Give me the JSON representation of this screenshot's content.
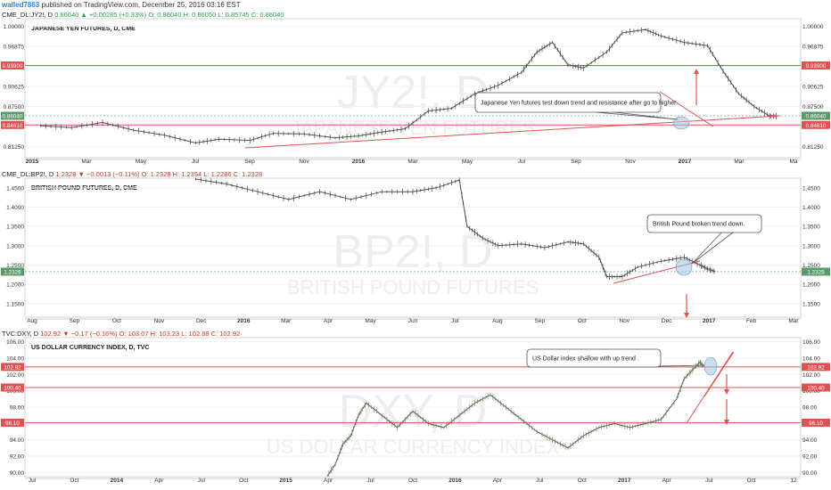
{
  "header": {
    "user": "walled7863",
    "published": "published on TradingView.com, December 25, 2016 03:16 EST"
  },
  "chart_data": [
    {
      "type": "line",
      "symbol_line": {
        "symbol": "CME_DL:JY2!, D",
        "last": "0.86040",
        "change": "+0.00285 (+0.33%)",
        "o": "O: 0.86040",
        "h": "H: 0.86050",
        "l": "L: 0.85745",
        "c": "C: 0.86040",
        "direction": "up"
      },
      "title": "JAPANESE YEN FUTURES, D, CME",
      "watermark_big": "JY2!, D",
      "watermark_small": "JAPANESE YEN FUTURES",
      "y_ticks": [
        "1.00000",
        "0.96875",
        "0.93750",
        "0.90625",
        "0.87500",
        "0.84375",
        "0.81250"
      ],
      "ylim": [
        0.795,
        1.012
      ],
      "x_ticks": [
        "2015",
        "Mar",
        "May",
        "Jul",
        "Sep",
        "Nov",
        "2016",
        "Mar",
        "May",
        "Jul",
        "Sep",
        "Nov",
        "2017",
        "Mar",
        "Ma"
      ],
      "level_labels": [
        {
          "text": "0.93900",
          "value": 0.939,
          "color": "#e05252"
        },
        {
          "text": "0.86040",
          "value": 0.8604,
          "color": "#5a9a6a"
        },
        {
          "text": "0.84610",
          "value": 0.8461,
          "color": "#e05252"
        }
      ],
      "annotation": "Japanese Yen futures test down trend and resistance  after go to higher.",
      "price_path": [
        [
          0.02,
          0.845
        ],
        [
          0.06,
          0.842
        ],
        [
          0.1,
          0.85
        ],
        [
          0.14,
          0.838
        ],
        [
          0.18,
          0.83
        ],
        [
          0.22,
          0.818
        ],
        [
          0.25,
          0.824
        ],
        [
          0.29,
          0.822
        ],
        [
          0.32,
          0.833
        ],
        [
          0.36,
          0.832
        ],
        [
          0.4,
          0.826
        ],
        [
          0.43,
          0.829
        ],
        [
          0.46,
          0.835
        ],
        [
          0.49,
          0.84
        ],
        [
          0.52,
          0.868
        ],
        [
          0.55,
          0.872
        ],
        [
          0.58,
          0.895
        ],
        [
          0.61,
          0.908
        ],
        [
          0.64,
          0.928
        ],
        [
          0.66,
          0.96
        ],
        [
          0.68,
          0.975
        ],
        [
          0.7,
          0.94
        ],
        [
          0.72,
          0.935
        ],
        [
          0.75,
          0.96
        ],
        [
          0.77,
          0.99
        ],
        [
          0.8,
          0.995
        ],
        [
          0.82,
          0.985
        ],
        [
          0.85,
          0.975
        ],
        [
          0.88,
          0.97
        ],
        [
          0.9,
          0.93
        ],
        [
          0.92,
          0.895
        ],
        [
          0.94,
          0.875
        ],
        [
          0.96,
          0.86
        ],
        [
          0.97,
          0.86
        ]
      ]
    },
    {
      "type": "line",
      "symbol_line": {
        "symbol": "CME_DL:BP2!, D",
        "last": "1.2328",
        "change": "−0.0013 (−0.11%)",
        "o": "O: 1.2328",
        "h": "H: 1.2354",
        "l": "L: 1.2286",
        "c": "C: 1.2328",
        "direction": "down"
      },
      "title": "BRITISH POUND FUTURES, D, CME",
      "watermark_big": "BP2!, D",
      "watermark_small": "BRITISH POUND FUTURES",
      "y_ticks": [
        "1.4500",
        "1.4000",
        "1.3500",
        "1.3000",
        "1.2500",
        "1.2000",
        "1.1500"
      ],
      "ylim": [
        1.115,
        1.475
      ],
      "x_ticks": [
        "Aug",
        "Sep",
        "Oct",
        "Nov",
        "Dec",
        "2016",
        "Mar",
        "Apr",
        "May",
        "Jun",
        "Jul",
        "Aug",
        "Sep",
        "Oct",
        "Nov",
        "Dec",
        "2017",
        "Feb",
        "Mar"
      ],
      "level_labels": [
        {
          "text": "1.2328",
          "value": 1.2328,
          "color": "#5a9a6a"
        }
      ],
      "annotation": "British Pound broken trend  down.",
      "price_path": [
        [
          0.22,
          1.48
        ],
        [
          0.26,
          1.46
        ],
        [
          0.3,
          1.44
        ],
        [
          0.34,
          1.42
        ],
        [
          0.38,
          1.44
        ],
        [
          0.42,
          1.42
        ],
        [
          0.46,
          1.44
        ],
        [
          0.5,
          1.44
        ],
        [
          0.53,
          1.45
        ],
        [
          0.56,
          1.47
        ],
        [
          0.57,
          1.35
        ],
        [
          0.59,
          1.32
        ],
        [
          0.61,
          1.3
        ],
        [
          0.64,
          1.305
        ],
        [
          0.67,
          1.295
        ],
        [
          0.7,
          1.31
        ],
        [
          0.72,
          1.305
        ],
        [
          0.74,
          1.27
        ],
        [
          0.75,
          1.22
        ],
        [
          0.77,
          1.22
        ],
        [
          0.79,
          1.245
        ],
        [
          0.82,
          1.26
        ],
        [
          0.85,
          1.27
        ],
        [
          0.87,
          1.25
        ],
        [
          0.88,
          1.24
        ],
        [
          0.89,
          1.233
        ]
      ]
    },
    {
      "type": "line",
      "symbol_line": {
        "symbol": "TVC:DXY, D",
        "last": "102.92",
        "change": "−0.17 (−0.16%)",
        "o": "O: 103.07",
        "h": "H: 103.23",
        "l": "L: 102.88",
        "c": "C: 102.92",
        "direction": "down"
      },
      "title": "US DOLLAR CURRENCY INDEX, D, TVC",
      "watermark_big": "DXY, D",
      "watermark_small": "US DOLLAR CURRENCY INDEX",
      "y_ticks": [
        "106.00",
        "104.00",
        "102.00",
        "100.00",
        "98.00",
        "96.00",
        "94.00",
        "92.00",
        "90.00"
      ],
      "ylim": [
        89.5,
        106.5
      ],
      "x_ticks": [
        "Jul",
        "Oct",
        "2014",
        "Apr",
        "Jul",
        "Oct",
        "2015",
        "Apr",
        "Jul",
        "Oct",
        "2016",
        "Apr",
        "Jul",
        "Oct",
        "2017",
        "Apr",
        "Jul",
        "Oct",
        "12"
      ],
      "level_labels": [
        {
          "text": "102.92",
          "value": 102.92,
          "color": "#e05252"
        },
        {
          "text": "100.40",
          "value": 100.4,
          "color": "#e05252"
        },
        {
          "text": "96.10",
          "value": 96.1,
          "color": "#e05252"
        }
      ],
      "annotation": "US Dollar index  shallow with up trend .",
      "price_path": [
        [
          0.39,
          89.5
        ],
        [
          0.4,
          91
        ],
        [
          0.41,
          93.5
        ],
        [
          0.42,
          94.5
        ],
        [
          0.43,
          97
        ],
        [
          0.44,
          98.5
        ],
        [
          0.46,
          97
        ],
        [
          0.48,
          95.5
        ],
        [
          0.5,
          97.5
        ],
        [
          0.52,
          96
        ],
        [
          0.54,
          95.5
        ],
        [
          0.56,
          97
        ],
        [
          0.58,
          98.5
        ],
        [
          0.6,
          99.5
        ],
        [
          0.62,
          98
        ],
        [
          0.64,
          96.5
        ],
        [
          0.66,
          95
        ],
        [
          0.68,
          94
        ],
        [
          0.7,
          93
        ],
        [
          0.72,
          94.5
        ],
        [
          0.74,
          95.5
        ],
        [
          0.76,
          96
        ],
        [
          0.78,
          95.5
        ],
        [
          0.8,
          96
        ],
        [
          0.82,
          96.5
        ],
        [
          0.84,
          99
        ],
        [
          0.85,
          101.5
        ],
        [
          0.86,
          102.5
        ],
        [
          0.87,
          103.5
        ],
        [
          0.875,
          103
        ]
      ]
    }
  ]
}
